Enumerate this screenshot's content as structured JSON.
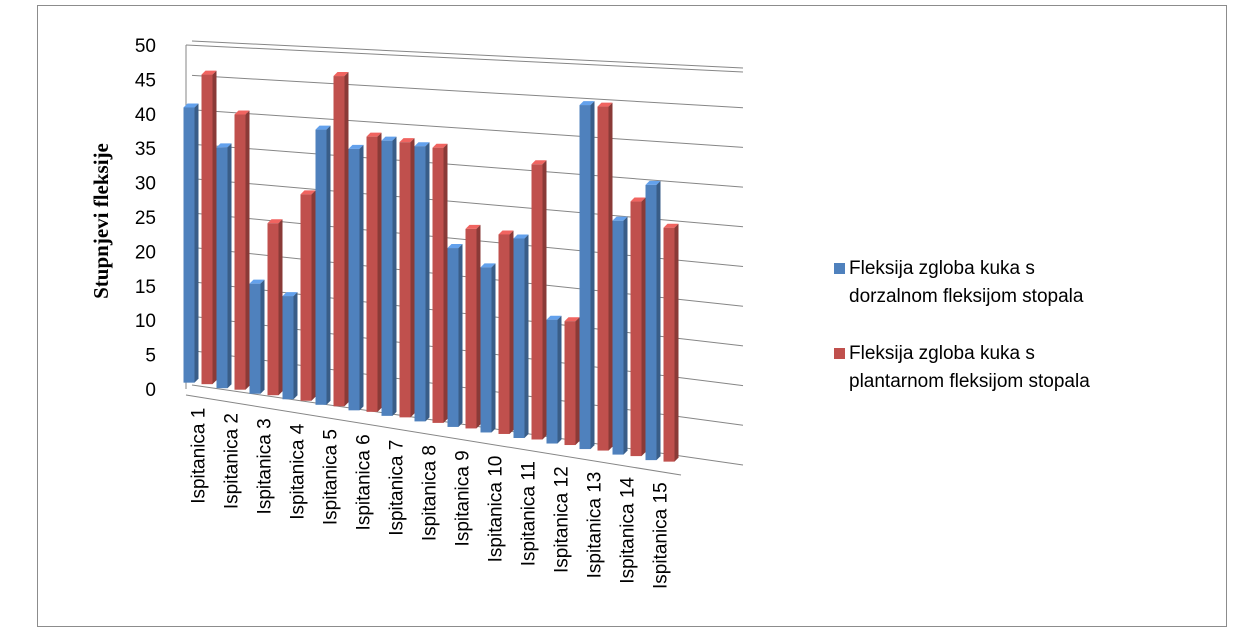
{
  "chart_data": {
    "type": "bar",
    "title": "",
    "xlabel": "",
    "ylabel": "Stupnjevi fleksije",
    "ylim": [
      0,
      50
    ],
    "yticks": [
      "0",
      "5",
      "10",
      "15",
      "20",
      "25",
      "30",
      "35",
      "40",
      "45",
      "50"
    ],
    "grid": true,
    "legend_position": "right",
    "categories": [
      "Ispitanica 1",
      "Ispitanica 2",
      "Ispitanica 3",
      "Ispitanica 4",
      "Ispitanica 5",
      "Ispitanica 6",
      "Ispitanica 7",
      "Ispitanica 8",
      "Ispitanica 9",
      "Ispitanica 10",
      "Ispitanica 11",
      "Ispitanica 12",
      "Ispitanica 13",
      "Ispitanica 14",
      "Ispitanica 15"
    ],
    "series": [
      {
        "name": "Fleksija zgloba kuka s dorzalnom fleksijom stopala",
        "color": "#4f81bd",
        "values": [
          40,
          35,
          16,
          15,
          40,
          38,
          40,
          40,
          26,
          24,
          29,
          18,
          50,
          34,
          40
        ]
      },
      {
        "name": "Fleksija zgloba kuka s plantarnom fleksijom stopala",
        "color": "#c0504d",
        "values": [
          45,
          40,
          25,
          30,
          48,
          40,
          40,
          40,
          29,
          29,
          40,
          18,
          50,
          37,
          34
        ]
      }
    ]
  }
}
